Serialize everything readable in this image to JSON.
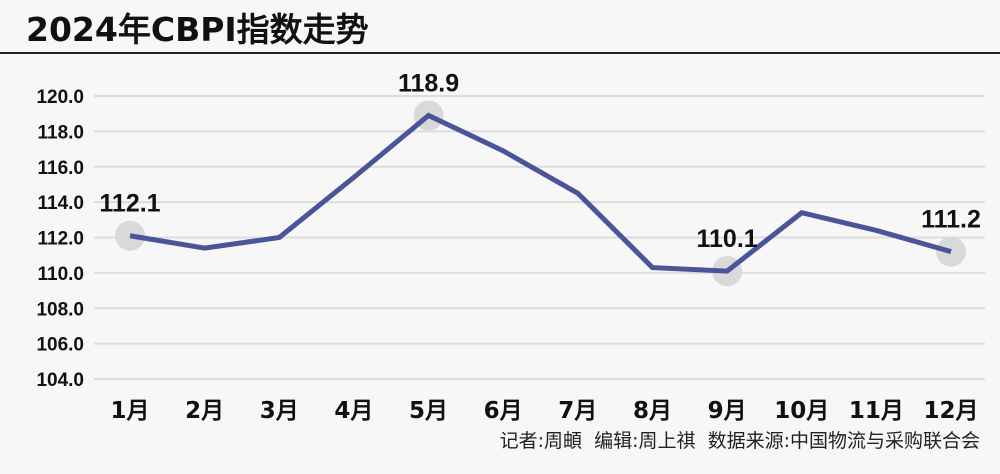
{
  "title": "2024年CBPI指数走势",
  "credits": "记者:周頔  编辑:周上祺  数据来源:中国物流与采购联合会",
  "colors": {
    "line": "#4a5599",
    "marker": "#d9d9d9",
    "grid": "#dcdcdc",
    "text": "#111111",
    "background": "#f7f7f7"
  },
  "chart_data": {
    "type": "line",
    "title": "2024年CBPI指数走势",
    "xlabel": "",
    "ylabel": "",
    "categories": [
      "1月",
      "2月",
      "3月",
      "4月",
      "5月",
      "6月",
      "7月",
      "8月",
      "9月",
      "10月",
      "11月",
      "12月"
    ],
    "series": [
      {
        "name": "CBPI",
        "values": [
          112.1,
          111.4,
          112.0,
          115.4,
          118.9,
          116.9,
          114.5,
          110.3,
          110.1,
          113.4,
          112.4,
          111.2
        ]
      }
    ],
    "annotations": [
      {
        "index": 0,
        "label": "112.1"
      },
      {
        "index": 4,
        "label": "118.9"
      },
      {
        "index": 8,
        "label": "110.1"
      },
      {
        "index": 11,
        "label": "111.2"
      }
    ],
    "yticks": [
      "104.0",
      "106.0",
      "108.0",
      "110.0",
      "112.0",
      "114.0",
      "116.0",
      "118.0",
      "120.0"
    ],
    "ylim": [
      104,
      120
    ],
    "grid": true,
    "legend": "none"
  }
}
